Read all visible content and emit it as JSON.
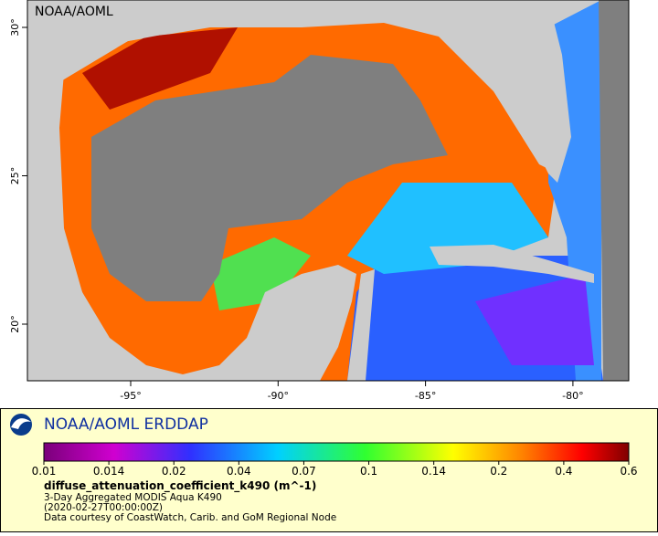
{
  "map": {
    "watermark": "NOAA/AOML",
    "x_tick_labels": [
      "-95°",
      "-90°",
      "-85°",
      "-80°"
    ],
    "y_tick_labels": [
      "30°",
      "25°",
      "20°"
    ]
  },
  "legend": {
    "title": "NOAA/AOML ERDDAP",
    "colorbar_labels": [
      "0.01",
      "0.014",
      "0.02",
      "0.04",
      "0.07",
      "0.1",
      "0.14",
      "0.2",
      "0.4",
      "0.6"
    ],
    "variable": "diffuse_attenuation_coefficient_k490 (m^-1)",
    "lines": [
      "3-Day Aggregated MODIS Aqua K490",
      "(2020-02-27T00:00:00Z)",
      "Data courtesy of CoastWatch, Carib. and GoM Regional Node"
    ]
  }
}
